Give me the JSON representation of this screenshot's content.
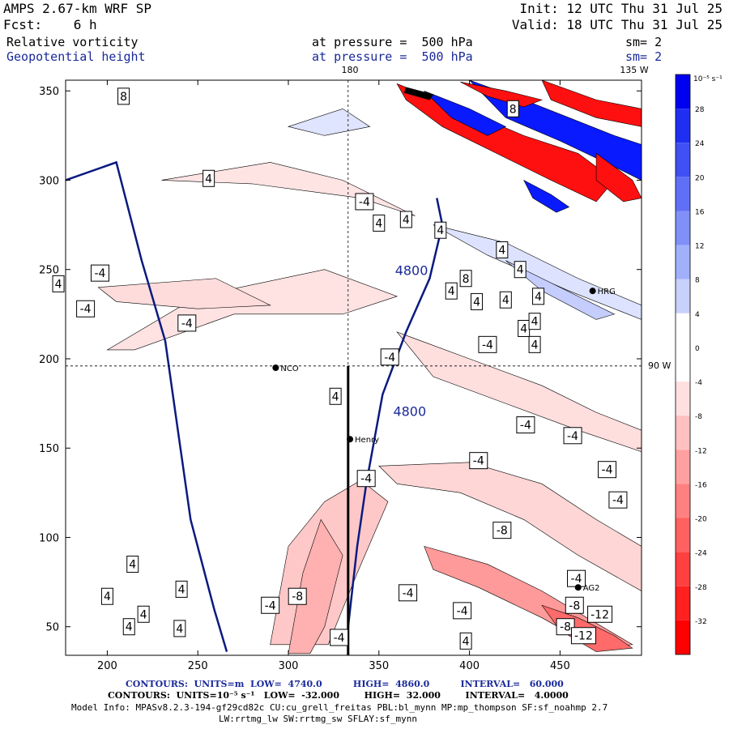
{
  "header": {
    "model": "AMPS 2.67-km WRF SP",
    "fcst": "Fcst:    6 h",
    "init": "Init: 12 UTC Thu 31 Jul 25",
    "valid": "Valid: 18 UTC Thu 31 Jul 25",
    "field1": "Relative vorticity",
    "field2": "Geopotential height",
    "pressure1": "at pressure =  500 hPa",
    "pressure2": "at pressure =  500 hPa",
    "sm1": "sm= 2",
    "sm2": "sm= 2"
  },
  "map_labels": {
    "lon_top_180": "180",
    "lon_top_135": "135 W",
    "lon_right_90": "90 W"
  },
  "stations": [
    "NCO",
    "Henry",
    "HRG",
    "AG2"
  ],
  "footer": {
    "contours_height": "CONTOURS:  UNITS=m  LOW=  4740.0          HIGH=  4860.0          INTERVAL=   60.000",
    "contours_vort": "CONTOURS:  UNITS=10⁻⁵ s⁻¹   LOW=  -32.000        HIGH=  32.000        INTERVAL=   4.0000",
    "model_info1": "Model Info: MPASv8.2.3-194-gf29cd82c CU:cu_grell_freitas PBL:bl_mynn MP:mp_thompson SF:sf_noahmp 2.7",
    "model_info2": "LW:rrtmg_lw SW:rrtmg_sw SFLAY:sf_mynn"
  },
  "colors": {
    "positive": "#0a1aff",
    "negative": "#ff1010",
    "height_contour": "#0a1a80"
  },
  "chart_data": {
    "type": "heatmap",
    "x_ticks": [
      200,
      250,
      300,
      350,
      400,
      450
    ],
    "y_ticks": [
      50,
      100,
      150,
      200,
      250,
      300,
      350
    ],
    "xlim": [
      177,
      495
    ],
    "ylim": [
      34,
      356
    ],
    "colorbar": {
      "unit_label": "10⁻⁵ s⁻¹",
      "levels": [
        32,
        28,
        24,
        20,
        16,
        12,
        8,
        4,
        0,
        -4,
        -8,
        -12,
        -16,
        -20,
        -24,
        -28,
        -32
      ],
      "colors": [
        "#0000f0",
        "#1f2ff2",
        "#3f50f4",
        "#6070f6",
        "#8090f8",
        "#a0b0fa",
        "#c8d0fc",
        "#ffffff",
        "#ffffff",
        "#ffe0e0",
        "#ffc0c0",
        "#ffa0a0",
        "#ff8080",
        "#ff6060",
        "#ff4040",
        "#ff2020",
        "#ff0000"
      ]
    },
    "height_contours": [
      {
        "label": "4800",
        "points": [
          [
            177,
            300
          ],
          [
            205,
            310
          ],
          [
            219,
            255
          ],
          [
            232,
            210
          ],
          [
            239,
            160
          ],
          [
            246,
            110
          ],
          [
            259,
            60
          ],
          [
            266,
            36
          ]
        ]
      },
      {
        "label": "4800",
        "points": [
          [
            382,
            290
          ],
          [
            385,
            275
          ],
          [
            378,
            245
          ],
          [
            365,
            215
          ],
          [
            352,
            180
          ],
          [
            343,
            130
          ],
          [
            338,
            95
          ],
          [
            333,
            50
          ]
        ]
      }
    ],
    "vorticity_labels": [
      {
        "x": 244,
        "y": 220,
        "v": "-4"
      },
      {
        "x": 196,
        "y": 248,
        "v": "-4"
      },
      {
        "x": 342,
        "y": 288,
        "v": "-4"
      },
      {
        "x": 410,
        "y": 208,
        "v": "-4"
      },
      {
        "x": 356,
        "y": 201,
        "v": "-4"
      },
      {
        "x": 431,
        "y": 163,
        "v": "-4"
      },
      {
        "x": 457,
        "y": 157,
        "v": "-4"
      },
      {
        "x": 343,
        "y": 133,
        "v": "-4"
      },
      {
        "x": 405,
        "y": 143,
        "v": "-4"
      },
      {
        "x": 476,
        "y": 138,
        "v": "-4"
      },
      {
        "x": 366,
        "y": 69,
        "v": "-4"
      },
      {
        "x": 459,
        "y": 77,
        "v": "-4"
      },
      {
        "x": 396,
        "y": 59,
        "v": "-4"
      },
      {
        "x": 290,
        "y": 62,
        "v": "-4"
      },
      {
        "x": 328,
        "y": 44,
        "v": "-4"
      },
      {
        "x": 482,
        "y": 121,
        "v": "-4"
      },
      {
        "x": 188,
        "y": 228,
        "v": "-4"
      },
      {
        "x": 458,
        "y": 62,
        "v": "-8"
      },
      {
        "x": 418,
        "y": 104,
        "v": "-8"
      },
      {
        "x": 305,
        "y": 67,
        "v": "-8"
      },
      {
        "x": 453,
        "y": 50,
        "v": "-8"
      },
      {
        "x": 463,
        "y": 45,
        "v": "-12"
      },
      {
        "x": 472,
        "y": 57,
        "v": "-12"
      },
      {
        "x": 209,
        "y": 347,
        "v": "8"
      },
      {
        "x": 256,
        "y": 301,
        "v": "4"
      },
      {
        "x": 365,
        "y": 278,
        "v": "4"
      },
      {
        "x": 350,
        "y": 276,
        "v": "4"
      },
      {
        "x": 418,
        "y": 261,
        "v": "4"
      },
      {
        "x": 428,
        "y": 250,
        "v": "4"
      },
      {
        "x": 384,
        "y": 272,
        "v": "4"
      },
      {
        "x": 390,
        "y": 238,
        "v": "4"
      },
      {
        "x": 404,
        "y": 232,
        "v": "4"
      },
      {
        "x": 420,
        "y": 233,
        "v": "4"
      },
      {
        "x": 430,
        "y": 217,
        "v": "4"
      },
      {
        "x": 436,
        "y": 208,
        "v": "4"
      },
      {
        "x": 438,
        "y": 235,
        "v": "4"
      },
      {
        "x": 436,
        "y": 221,
        "v": "4"
      },
      {
        "x": 173,
        "y": 242,
        "v": "4"
      },
      {
        "x": 326,
        "y": 179,
        "v": "4"
      },
      {
        "x": 214,
        "y": 85,
        "v": "4"
      },
      {
        "x": 200,
        "y": 67,
        "v": "4"
      },
      {
        "x": 241,
        "y": 71,
        "v": "4"
      },
      {
        "x": 220,
        "y": 57,
        "v": "4"
      },
      {
        "x": 212,
        "y": 50,
        "v": "4"
      },
      {
        "x": 240,
        "y": 49,
        "v": "4"
      },
      {
        "x": 398,
        "y": 42,
        "v": "4"
      },
      {
        "x": 398,
        "y": 245,
        "v": "8"
      },
      {
        "x": 424,
        "y": 340,
        "v": "8"
      }
    ],
    "stations": [
      {
        "name": "NCO",
        "x": 293,
        "y": 195
      },
      {
        "name": "Henry",
        "x": 334,
        "y": 155
      },
      {
        "name": "HRG",
        "x": 468,
        "y": 238
      },
      {
        "name": "AG2",
        "x": 460,
        "y": 72
      }
    ],
    "crosshair": {
      "x": 333,
      "y": 196
    }
  }
}
